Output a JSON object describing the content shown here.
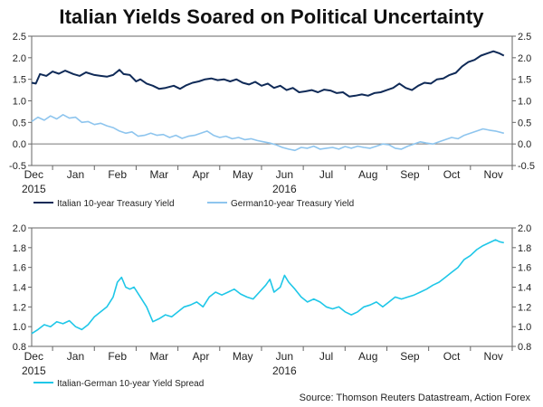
{
  "title": "Italian Yields Soared on Political Uncertainty",
  "source": "Source: Thomson Reuters Datastream, Action Forex",
  "chart_data": [
    {
      "type": "line",
      "x_months": [
        "Dec",
        "Jan",
        "Feb",
        "Mar",
        "Apr",
        "May",
        "Jun",
        "Jul",
        "Aug",
        "Sep",
        "Oct",
        "Nov"
      ],
      "years": [
        {
          "label": "2015",
          "month": "Dec"
        },
        {
          "label": "2016",
          "month": "Jun"
        }
      ],
      "ylim": [
        -0.5,
        2.5
      ],
      "yticks": [
        -0.5,
        0.0,
        0.5,
        1.0,
        1.5,
        2.0,
        2.5
      ],
      "ytick_labels": [
        "-0.5",
        "0.0",
        "0.5",
        "1.0",
        "1.5",
        "2.0",
        "2.5"
      ],
      "zero_line": true,
      "legend": "bottom-left",
      "series": [
        {
          "name": "Italian 10-year Treasury Yield",
          "color": "#0f2a57",
          "points": [
            [
              0.0,
              1.42
            ],
            [
              0.1,
              1.4
            ],
            [
              0.2,
              1.62
            ],
            [
              0.35,
              1.58
            ],
            [
              0.5,
              1.68
            ],
            [
              0.65,
              1.63
            ],
            [
              0.8,
              1.7
            ],
            [
              1.0,
              1.62
            ],
            [
              1.15,
              1.58
            ],
            [
              1.3,
              1.66
            ],
            [
              1.5,
              1.6
            ],
            [
              1.65,
              1.58
            ],
            [
              1.8,
              1.56
            ],
            [
              1.95,
              1.6
            ],
            [
              2.1,
              1.72
            ],
            [
              2.2,
              1.62
            ],
            [
              2.35,
              1.6
            ],
            [
              2.5,
              1.45
            ],
            [
              2.6,
              1.5
            ],
            [
              2.75,
              1.4
            ],
            [
              2.9,
              1.35
            ],
            [
              3.05,
              1.28
            ],
            [
              3.2,
              1.3
            ],
            [
              3.4,
              1.35
            ],
            [
              3.55,
              1.28
            ],
            [
              3.7,
              1.36
            ],
            [
              3.85,
              1.42
            ],
            [
              4.0,
              1.45
            ],
            [
              4.15,
              1.5
            ],
            [
              4.3,
              1.52
            ],
            [
              4.45,
              1.48
            ],
            [
              4.6,
              1.5
            ],
            [
              4.75,
              1.45
            ],
            [
              4.9,
              1.5
            ],
            [
              5.05,
              1.42
            ],
            [
              5.2,
              1.38
            ],
            [
              5.35,
              1.44
            ],
            [
              5.5,
              1.35
            ],
            [
              5.65,
              1.4
            ],
            [
              5.8,
              1.3
            ],
            [
              5.95,
              1.35
            ],
            [
              6.1,
              1.25
            ],
            [
              6.25,
              1.3
            ],
            [
              6.4,
              1.2
            ],
            [
              6.55,
              1.22
            ],
            [
              6.7,
              1.25
            ],
            [
              6.85,
              1.2
            ],
            [
              7.0,
              1.26
            ],
            [
              7.15,
              1.24
            ],
            [
              7.3,
              1.18
            ],
            [
              7.45,
              1.2
            ],
            [
              7.6,
              1.1
            ],
            [
              7.75,
              1.12
            ],
            [
              7.9,
              1.15
            ],
            [
              8.05,
              1.12
            ],
            [
              8.2,
              1.18
            ],
            [
              8.35,
              1.2
            ],
            [
              8.5,
              1.25
            ],
            [
              8.65,
              1.3
            ],
            [
              8.8,
              1.4
            ],
            [
              8.95,
              1.3
            ],
            [
              9.1,
              1.25
            ],
            [
              9.25,
              1.35
            ],
            [
              9.4,
              1.42
            ],
            [
              9.55,
              1.4
            ],
            [
              9.7,
              1.5
            ],
            [
              9.85,
              1.52
            ],
            [
              10.0,
              1.6
            ],
            [
              10.15,
              1.65
            ],
            [
              10.3,
              1.8
            ],
            [
              10.45,
              1.9
            ],
            [
              10.6,
              1.95
            ],
            [
              10.75,
              2.05
            ],
            [
              10.9,
              2.1
            ],
            [
              11.05,
              2.15
            ],
            [
              11.2,
              2.1
            ],
            [
              11.3,
              2.05
            ]
          ]
        },
        {
          "name": "German10-year Treasury Yield",
          "color": "#8ec5ee",
          "points": [
            [
              0.0,
              0.52
            ],
            [
              0.15,
              0.62
            ],
            [
              0.3,
              0.55
            ],
            [
              0.45,
              0.65
            ],
            [
              0.6,
              0.58
            ],
            [
              0.75,
              0.68
            ],
            [
              0.9,
              0.6
            ],
            [
              1.05,
              0.62
            ],
            [
              1.2,
              0.5
            ],
            [
              1.35,
              0.52
            ],
            [
              1.5,
              0.45
            ],
            [
              1.65,
              0.48
            ],
            [
              1.8,
              0.42
            ],
            [
              1.95,
              0.38
            ],
            [
              2.1,
              0.3
            ],
            [
              2.25,
              0.25
            ],
            [
              2.4,
              0.28
            ],
            [
              2.55,
              0.18
            ],
            [
              2.7,
              0.2
            ],
            [
              2.85,
              0.25
            ],
            [
              3.0,
              0.2
            ],
            [
              3.15,
              0.22
            ],
            [
              3.3,
              0.15
            ],
            [
              3.45,
              0.2
            ],
            [
              3.6,
              0.13
            ],
            [
              3.75,
              0.18
            ],
            [
              3.9,
              0.2
            ],
            [
              4.05,
              0.25
            ],
            [
              4.2,
              0.3
            ],
            [
              4.35,
              0.2
            ],
            [
              4.5,
              0.15
            ],
            [
              4.65,
              0.18
            ],
            [
              4.8,
              0.12
            ],
            [
              4.95,
              0.15
            ],
            [
              5.1,
              0.1
            ],
            [
              5.25,
              0.12
            ],
            [
              5.4,
              0.08
            ],
            [
              5.55,
              0.05
            ],
            [
              5.7,
              0.02
            ],
            [
              5.85,
              -0.02
            ],
            [
              6.0,
              -0.08
            ],
            [
              6.15,
              -0.12
            ],
            [
              6.3,
              -0.15
            ],
            [
              6.45,
              -0.08
            ],
            [
              6.6,
              -0.1
            ],
            [
              6.75,
              -0.05
            ],
            [
              6.9,
              -0.12
            ],
            [
              7.05,
              -0.1
            ],
            [
              7.2,
              -0.08
            ],
            [
              7.35,
              -0.12
            ],
            [
              7.5,
              -0.06
            ],
            [
              7.65,
              -0.1
            ],
            [
              7.8,
              -0.05
            ],
            [
              7.95,
              -0.08
            ],
            [
              8.1,
              -0.1
            ],
            [
              8.25,
              -0.05
            ],
            [
              8.4,
              0.0
            ],
            [
              8.55,
              -0.02
            ],
            [
              8.7,
              -0.1
            ],
            [
              8.85,
              -0.12
            ],
            [
              9.0,
              -0.05
            ],
            [
              9.15,
              0.0
            ],
            [
              9.3,
              0.05
            ],
            [
              9.45,
              0.02
            ],
            [
              9.6,
              0.0
            ],
            [
              9.75,
              0.05
            ],
            [
              9.9,
              0.1
            ],
            [
              10.05,
              0.15
            ],
            [
              10.2,
              0.12
            ],
            [
              10.35,
              0.2
            ],
            [
              10.5,
              0.25
            ],
            [
              10.65,
              0.3
            ],
            [
              10.8,
              0.35
            ],
            [
              10.95,
              0.32
            ],
            [
              11.1,
              0.3
            ],
            [
              11.3,
              0.25
            ]
          ]
        }
      ]
    },
    {
      "type": "line",
      "x_months": [
        "Dec",
        "Jan",
        "Feb",
        "Mar",
        "Apr",
        "May",
        "Jun",
        "Jul",
        "Aug",
        "Sep",
        "Oct",
        "Nov"
      ],
      "years": [
        {
          "label": "2015",
          "month": "Dec"
        },
        {
          "label": "2016",
          "month": "Jun"
        }
      ],
      "ylim": [
        0.8,
        2.0
      ],
      "yticks": [
        0.8,
        1.0,
        1.2,
        1.4,
        1.6,
        1.8,
        2.0
      ],
      "ytick_labels": [
        "0.8",
        "1.0",
        "1.2",
        "1.4",
        "1.6",
        "1.8",
        "2.0"
      ],
      "legend": "bottom-left",
      "series": [
        {
          "name": "Italian-German 10-year Yield Spread",
          "color": "#1fc7e8",
          "points": [
            [
              0.0,
              0.93
            ],
            [
              0.15,
              0.97
            ],
            [
              0.3,
              1.02
            ],
            [
              0.45,
              1.0
            ],
            [
              0.6,
              1.05
            ],
            [
              0.75,
              1.03
            ],
            [
              0.9,
              1.06
            ],
            [
              1.05,
              1.0
            ],
            [
              1.2,
              0.97
            ],
            [
              1.35,
              1.02
            ],
            [
              1.5,
              1.1
            ],
            [
              1.65,
              1.15
            ],
            [
              1.8,
              1.2
            ],
            [
              1.95,
              1.3
            ],
            [
              2.05,
              1.45
            ],
            [
              2.15,
              1.5
            ],
            [
              2.25,
              1.4
            ],
            [
              2.35,
              1.38
            ],
            [
              2.45,
              1.4
            ],
            [
              2.6,
              1.3
            ],
            [
              2.75,
              1.2
            ],
            [
              2.9,
              1.05
            ],
            [
              3.05,
              1.08
            ],
            [
              3.2,
              1.12
            ],
            [
              3.35,
              1.1
            ],
            [
              3.5,
              1.15
            ],
            [
              3.65,
              1.2
            ],
            [
              3.8,
              1.22
            ],
            [
              3.95,
              1.25
            ],
            [
              4.1,
              1.2
            ],
            [
              4.25,
              1.3
            ],
            [
              4.4,
              1.35
            ],
            [
              4.55,
              1.32
            ],
            [
              4.7,
              1.35
            ],
            [
              4.85,
              1.38
            ],
            [
              5.0,
              1.33
            ],
            [
              5.15,
              1.3
            ],
            [
              5.3,
              1.28
            ],
            [
              5.45,
              1.35
            ],
            [
              5.6,
              1.42
            ],
            [
              5.7,
              1.48
            ],
            [
              5.8,
              1.35
            ],
            [
              5.95,
              1.4
            ],
            [
              6.05,
              1.52
            ],
            [
              6.15,
              1.45
            ],
            [
              6.3,
              1.38
            ],
            [
              6.45,
              1.3
            ],
            [
              6.6,
              1.25
            ],
            [
              6.75,
              1.28
            ],
            [
              6.9,
              1.25
            ],
            [
              7.05,
              1.2
            ],
            [
              7.2,
              1.18
            ],
            [
              7.35,
              1.2
            ],
            [
              7.5,
              1.15
            ],
            [
              7.65,
              1.12
            ],
            [
              7.8,
              1.15
            ],
            [
              7.95,
              1.2
            ],
            [
              8.1,
              1.22
            ],
            [
              8.25,
              1.25
            ],
            [
              8.4,
              1.2
            ],
            [
              8.55,
              1.25
            ],
            [
              8.7,
              1.3
            ],
            [
              8.85,
              1.28
            ],
            [
              9.0,
              1.3
            ],
            [
              9.15,
              1.32
            ],
            [
              9.3,
              1.35
            ],
            [
              9.45,
              1.38
            ],
            [
              9.6,
              1.42
            ],
            [
              9.75,
              1.45
            ],
            [
              9.9,
              1.5
            ],
            [
              10.05,
              1.55
            ],
            [
              10.2,
              1.6
            ],
            [
              10.35,
              1.68
            ],
            [
              10.5,
              1.72
            ],
            [
              10.65,
              1.78
            ],
            [
              10.8,
              1.82
            ],
            [
              10.95,
              1.85
            ],
            [
              11.1,
              1.88
            ],
            [
              11.2,
              1.86
            ],
            [
              11.3,
              1.85
            ]
          ]
        }
      ]
    }
  ]
}
